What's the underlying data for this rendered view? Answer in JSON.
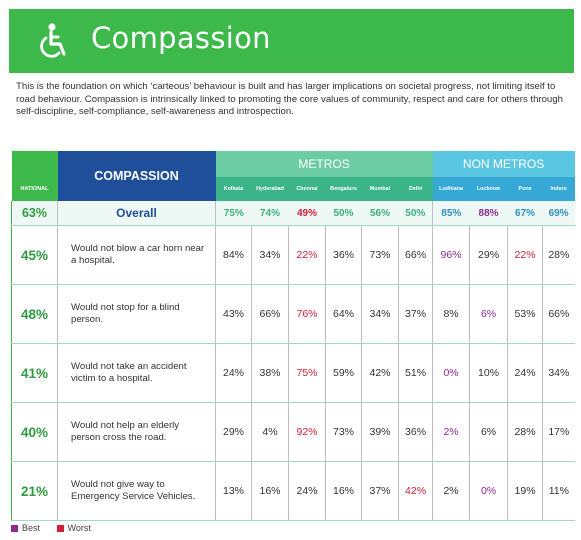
{
  "header": {
    "title": "Compassion",
    "icon": "wheelchair-icon",
    "color": "#3db84a"
  },
  "intro": "This is the foundation on which ‘carteous’ behaviour is built and has larger implications on societal progress, not limiting itself to road behaviour. Compassion is intrinsically linked to promoting the core values of community, respect and care for others through self-discipline, self-compliance, self-awareness and introspection.",
  "table": {
    "national_label": "NATIONAL",
    "compassion_label": "COMPASSION",
    "metros_label": "METROS",
    "non_metros_label": "NON METROS",
    "metros": [
      "Kolkata",
      "Hyderabad",
      "Chennai",
      "Bengaluru",
      "Mumbai",
      "Delhi"
    ],
    "non_metros": [
      "Ludhiana",
      "Lucknow",
      "Pune",
      "Indore"
    ],
    "overall": {
      "national": "63%",
      "label": "Overall",
      "values": [
        "75%",
        "74%",
        "49%",
        "50%",
        "56%",
        "50%",
        "85%",
        "88%",
        "67%",
        "69%"
      ]
    },
    "rows": [
      {
        "national": "45%",
        "statement": "Would not blow a car horn near a hospital.",
        "values": [
          "84%",
          "34%",
          "22%",
          "36%",
          "73%",
          "66%",
          "96%",
          "29%",
          "22%",
          "28%"
        ]
      },
      {
        "national": "48%",
        "statement": "Would not stop for a blind person.",
        "values": [
          "43%",
          "66%",
          "76%",
          "64%",
          "34%",
          "37%",
          "8%",
          "6%",
          "53%",
          "66%"
        ]
      },
      {
        "national": "41%",
        "statement": "Would not take an accident victim to a hospital.",
        "values": [
          "24%",
          "38%",
          "75%",
          "59%",
          "42%",
          "51%",
          "0%",
          "10%",
          "24%",
          "34%"
        ]
      },
      {
        "national": "40%",
        "statement": "Would not help an elderly person cross the road.",
        "values": [
          "29%",
          "4%",
          "92%",
          "73%",
          "39%",
          "36%",
          "2%",
          "6%",
          "28%",
          "17%"
        ]
      },
      {
        "national": "21%",
        "statement": "Would not give way to Emergency Service Vehicles.",
        "values": [
          "13%",
          "16%",
          "24%",
          "16%",
          "37%",
          "42%",
          "2%",
          "0%",
          "19%",
          "11%"
        ]
      }
    ],
    "highlights": {
      "overall": {
        "best": [
          7
        ],
        "worst": [
          2
        ]
      },
      "rows": [
        {
          "best": [
            6
          ],
          "worst": [
            2,
            8
          ]
        },
        {
          "best": [
            7
          ],
          "worst": [
            2
          ]
        },
        {
          "best": [
            6
          ],
          "worst": [
            2
          ]
        },
        {
          "best": [
            6
          ],
          "worst": [
            2
          ]
        },
        {
          "best": [
            7
          ],
          "worst": [
            5
          ]
        }
      ]
    }
  },
  "legend": {
    "best_label": "Best",
    "worst_label": "Worst",
    "best_color": "#8e2b8f",
    "worst_color": "#d0203a"
  }
}
